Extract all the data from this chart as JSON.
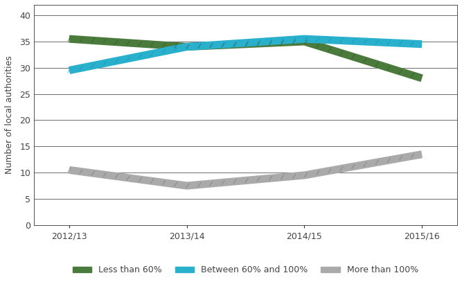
{
  "x_labels": [
    "2012/13",
    "2013/14",
    "2014/15",
    "2015/16"
  ],
  "x_values": [
    0,
    1,
    2,
    3
  ],
  "series": [
    {
      "label": "Less than 60%",
      "values": [
        35.5,
        34.0,
        35.0,
        28.0
      ],
      "color": "#4a7a3c",
      "linewidth": 8,
      "style": "textured",
      "texture_color": "#2d5a1e"
    },
    {
      "label": "Between 60% and 100%",
      "values": [
        29.5,
        34.0,
        35.5,
        34.5
      ],
      "color": "#29b0cc",
      "linewidth": 8,
      "style": "textured",
      "texture_color": "#1a90aa"
    },
    {
      "label": "More than 100%",
      "values": [
        10.5,
        7.5,
        9.5,
        13.5
      ],
      "color": "#aaaaaa",
      "linewidth": 8,
      "style": "textured",
      "texture_color": "#777777"
    }
  ],
  "ylabel": "Number of local authorities",
  "ylim": [
    0,
    42
  ],
  "yticks": [
    0,
    5,
    10,
    15,
    20,
    25,
    30,
    35,
    40
  ],
  "background_color": "#ffffff",
  "grid_color": "#333333",
  "grid_alpha": 1.0,
  "grid_linewidth": 0.5,
  "label_fontsize": 9,
  "tick_fontsize": 9,
  "legend_fontsize": 9
}
